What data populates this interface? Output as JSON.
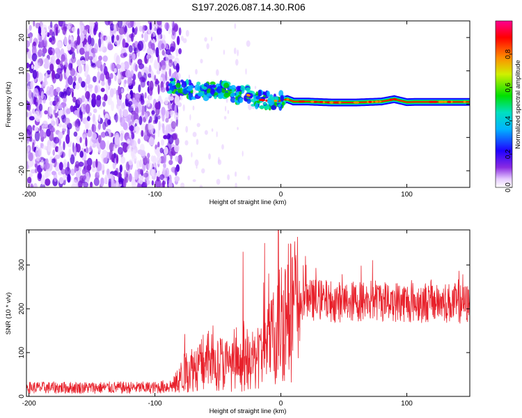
{
  "title": "S197.2026.087.14.30.R06",
  "chart_data": [
    {
      "type": "heatmap",
      "name": "spectrogram",
      "xlabel": "Height of straight line (km)",
      "ylabel": "Frequency (Hz)",
      "xlim": [
        -202,
        150
      ],
      "ylim": [
        -25,
        25
      ],
      "xticks": [
        -200,
        -100,
        0,
        100
      ],
      "yticks": [
        -20,
        -10,
        0,
        10,
        20
      ],
      "noise_region_x": [
        -202,
        -80
      ],
      "signal_track": {
        "x": [
          -88,
          -80,
          -70,
          -60,
          -50,
          -40,
          -35,
          -30,
          -20,
          -10,
          0,
          5,
          10,
          20,
          40,
          60,
          80,
          90,
          100,
          110,
          150
        ],
        "freq": [
          5.5,
          5.5,
          4.0,
          4.0,
          4.5,
          4.0,
          2.5,
          3.5,
          1.5,
          1.0,
          1.0,
          1.5,
          0.8,
          0.8,
          0.5,
          0.5,
          0.8,
          1.5,
          0.6,
          0.7,
          0.7
        ]
      },
      "colorbar": {
        "label": "Normalized spectral amplitude",
        "range": [
          0.0,
          1.0
        ],
        "ticks": [
          "0.0",
          "0.2",
          "0.4",
          "0.6",
          "0.8"
        ]
      }
    },
    {
      "type": "line",
      "name": "snr",
      "xlabel": "Height of straight line (km)",
      "ylabel": "SNR (10 * v/v)",
      "xlim": [
        -202,
        150
      ],
      "ylim": [
        0,
        380
      ],
      "xticks": [
        -200,
        -100,
        0,
        100
      ],
      "yticks": [
        0,
        100,
        200,
        300
      ],
      "color": "#e8202a",
      "series": [
        {
          "name": "SNR",
          "x": [
            -202,
            -150,
            -100,
            -85,
            -75,
            -65,
            -55,
            -45,
            -35,
            -25,
            -15,
            -5,
            0,
            10,
            20,
            30,
            50,
            75,
            100,
            125,
            150
          ],
          "values": [
            20,
            20,
            20,
            25,
            60,
            70,
            85,
            75,
            65,
            75,
            95,
            135,
            180,
            205,
            220,
            220,
            215,
            220,
            215,
            215,
            210
          ]
        }
      ],
      "peaks": [
        {
          "x": -30,
          "value": 330
        },
        {
          "x": -13,
          "value": 350
        },
        {
          "x": -2,
          "value": 380
        },
        {
          "x": 20,
          "value": 300
        }
      ]
    }
  ]
}
